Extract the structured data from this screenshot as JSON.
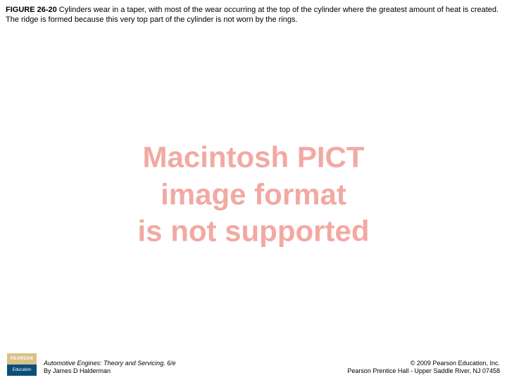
{
  "caption": {
    "label": "FIGURE 26-20",
    "text": " Cylinders wear in a taper, with most of the wear occurring at the top of the cylinder where the greatest amount of heat is created. The ridge is formed because this very top part of the cylinder is not worn by the rings."
  },
  "placeholder": {
    "line1": "Macintosh PICT",
    "line2": "image format",
    "line3": "is not supported",
    "color": "#f2a9a2",
    "fontsize": 42
  },
  "footer": {
    "logo": {
      "top": "PEARSON",
      "bottom": "Education"
    },
    "left": {
      "title": "Automotive Engines: Theory and Servicing, 6/e",
      "author": "By James D Halderman"
    },
    "right": {
      "copyright": "© 2009 Pearson Education, Inc.",
      "address": "Pearson Prentice Hall - Upper Saddle River, NJ 07458"
    }
  }
}
